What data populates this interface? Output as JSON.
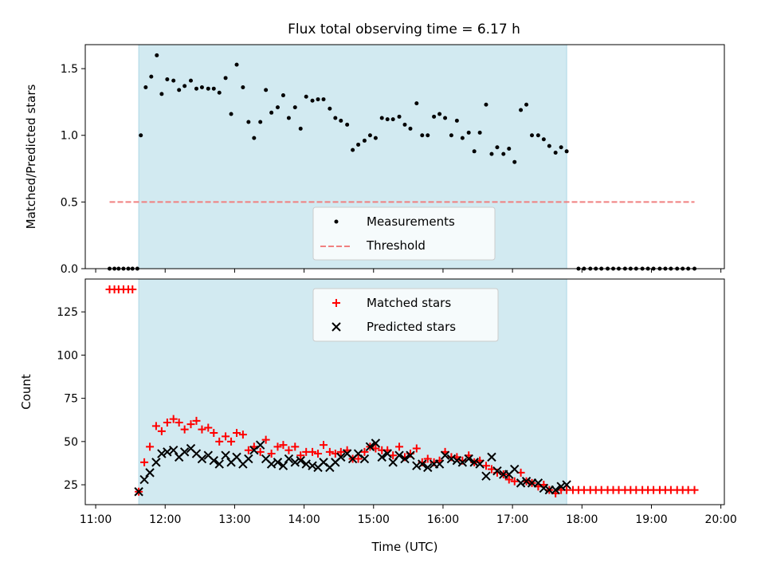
{
  "title": "Flux total observing time = 6.17 h",
  "x_tick_labels": [
    "11:00",
    "12:00",
    "13:00",
    "14:00",
    "15:00",
    "16:00",
    "17:00",
    "18:00",
    "19:00",
    "20:00"
  ],
  "colors": {
    "shade": "#add8e6",
    "threshold": "#f08080",
    "matched": "#ff0000",
    "predicted": "#000000",
    "measurements": "#000000"
  },
  "chart_data": [
    {
      "type": "scatter",
      "ylabel": "Matched/Predicted stars",
      "xlabel": "",
      "xlim": [
        10.85,
        20.05
      ],
      "ylim": [
        0,
        1.68
      ],
      "y_ticks": [
        0.0,
        0.5,
        1.0,
        1.5
      ],
      "y_tick_labels": [
        "0.0",
        "0.5",
        "1.0",
        "1.5"
      ],
      "shaded_interval": [
        11.62,
        17.78
      ],
      "threshold": {
        "name": "Threshold",
        "y": 0.5,
        "x_range": [
          11.2,
          19.62
        ]
      },
      "legend": {
        "position": "lower center",
        "entries": [
          "Measurements",
          "Threshold"
        ]
      },
      "series": [
        {
          "name": "Measurements",
          "x": [
            11.2,
            11.27,
            11.33,
            11.4,
            11.47,
            11.53,
            11.6,
            11.65,
            11.72,
            11.8,
            11.88,
            11.95,
            12.03,
            12.12,
            12.2,
            12.28,
            12.37,
            12.45,
            12.53,
            12.62,
            12.7,
            12.78,
            12.87,
            12.95,
            13.03,
            13.12,
            13.2,
            13.28,
            13.37,
            13.45,
            13.53,
            13.62,
            13.7,
            13.78,
            13.87,
            13.95,
            14.03,
            14.12,
            14.2,
            14.28,
            14.37,
            14.45,
            14.53,
            14.62,
            14.7,
            14.78,
            14.87,
            14.95,
            15.03,
            15.12,
            15.2,
            15.28,
            15.37,
            15.45,
            15.53,
            15.62,
            15.7,
            15.78,
            15.87,
            15.95,
            16.03,
            16.12,
            16.2,
            16.28,
            16.37,
            16.45,
            16.53,
            16.62,
            16.7,
            16.78,
            16.87,
            16.95,
            17.03,
            17.12,
            17.2,
            17.28,
            17.37,
            17.45,
            17.53,
            17.62,
            17.7,
            17.78,
            17.95,
            18.03,
            18.12,
            18.2,
            18.28,
            18.37,
            18.45,
            18.53,
            18.62,
            18.7,
            18.78,
            18.87,
            18.95,
            19.03,
            19.12,
            19.2,
            19.28,
            19.37,
            19.45,
            19.53,
            19.62
          ],
          "y": [
            0,
            0,
            0,
            0,
            0,
            0,
            0,
            1.0,
            1.36,
            1.44,
            1.6,
            1.31,
            1.42,
            1.41,
            1.34,
            1.37,
            1.41,
            1.35,
            1.36,
            1.35,
            1.35,
            1.32,
            1.43,
            1.16,
            1.53,
            1.36,
            1.1,
            0.98,
            1.1,
            1.34,
            1.17,
            1.21,
            1.3,
            1.13,
            1.21,
            1.05,
            1.29,
            1.26,
            1.27,
            1.27,
            1.2,
            1.13,
            1.11,
            1.08,
            0.89,
            0.93,
            0.96,
            1.0,
            0.98,
            1.13,
            1.12,
            1.12,
            1.14,
            1.08,
            1.05,
            1.24,
            1.0,
            1.0,
            1.14,
            1.16,
            1.13,
            1.0,
            1.11,
            0.98,
            1.02,
            0.88,
            1.02,
            1.23,
            0.86,
            0.91,
            0.86,
            0.9,
            0.8,
            1.19,
            1.23,
            1.0,
            1.0,
            0.97,
            0.92,
            0.87,
            0.91,
            0.88,
            0,
            0,
            0,
            0,
            0,
            0,
            0,
            0,
            0,
            0,
            0,
            0,
            0,
            0,
            0,
            0,
            0,
            0,
            0,
            0,
            0
          ]
        }
      ]
    },
    {
      "type": "scatter",
      "ylabel": "Count",
      "xlabel": "Time (UTC)",
      "xlim": [
        10.85,
        20.05
      ],
      "ylim": [
        13.5,
        144
      ],
      "y_ticks": [
        25,
        50,
        75,
        100,
        125
      ],
      "y_tick_labels": [
        "25",
        "50",
        "75",
        "100",
        "125"
      ],
      "shaded_interval": [
        11.62,
        17.78
      ],
      "legend": {
        "position": "upper center",
        "entries": [
          "Matched stars",
          "Predicted stars"
        ]
      },
      "series": [
        {
          "name": "Matched stars",
          "marker": "plus",
          "x": [
            11.2,
            11.27,
            11.33,
            11.4,
            11.47,
            11.53,
            11.62,
            11.7,
            11.78,
            11.87,
            11.95,
            12.03,
            12.12,
            12.2,
            12.28,
            12.37,
            12.45,
            12.53,
            12.62,
            12.7,
            12.78,
            12.87,
            12.95,
            13.03,
            13.12,
            13.2,
            13.28,
            13.37,
            13.45,
            13.53,
            13.62,
            13.7,
            13.78,
            13.87,
            13.95,
            14.03,
            14.12,
            14.2,
            14.28,
            14.37,
            14.45,
            14.53,
            14.62,
            14.7,
            14.78,
            14.87,
            14.95,
            15.03,
            15.12,
            15.2,
            15.28,
            15.37,
            15.45,
            15.53,
            15.62,
            15.7,
            15.78,
            15.87,
            15.95,
            16.03,
            16.12,
            16.2,
            16.28,
            16.37,
            16.45,
            16.53,
            16.62,
            16.7,
            16.78,
            16.87,
            16.95,
            17.03,
            17.12,
            17.2,
            17.28,
            17.37,
            17.45,
            17.53,
            17.62,
            17.7,
            17.78,
            17.87,
            17.95,
            18.03,
            18.12,
            18.2,
            18.28,
            18.37,
            18.45,
            18.53,
            18.62,
            18.7,
            18.78,
            18.87,
            18.95,
            19.03,
            19.12,
            19.2,
            19.28,
            19.37,
            19.45,
            19.53,
            19.62
          ],
          "y": [
            138,
            138,
            138,
            138,
            138,
            138,
            21,
            38,
            47,
            59,
            56,
            61,
            63,
            61,
            57,
            60,
            62,
            57,
            58,
            55,
            50,
            53,
            50,
            55,
            54,
            45,
            47,
            44,
            51,
            43,
            47,
            48,
            45,
            47,
            42,
            44,
            44,
            43,
            48,
            44,
            43,
            44,
            45,
            40,
            40,
            44,
            47,
            46,
            45,
            45,
            42,
            47,
            41,
            43,
            46,
            38,
            40,
            38,
            39,
            44,
            41,
            41,
            39,
            42,
            38,
            39,
            36,
            34,
            32,
            31,
            28,
            27,
            32,
            27,
            26,
            24,
            25,
            22,
            20,
            22,
            22,
            22,
            22,
            22,
            22,
            22,
            22,
            22,
            22,
            22,
            22,
            22,
            22,
            22,
            22,
            22,
            22,
            22,
            22,
            22,
            22,
            22,
            22
          ]
        },
        {
          "name": "Predicted stars",
          "marker": "x",
          "x": [
            11.62,
            11.7,
            11.78,
            11.87,
            11.95,
            12.03,
            12.12,
            12.2,
            12.28,
            12.37,
            12.45,
            12.53,
            12.62,
            12.7,
            12.78,
            12.87,
            12.95,
            13.03,
            13.12,
            13.2,
            13.28,
            13.37,
            13.45,
            13.53,
            13.62,
            13.7,
            13.78,
            13.87,
            13.95,
            14.03,
            14.12,
            14.2,
            14.28,
            14.37,
            14.45,
            14.53,
            14.62,
            14.7,
            14.78,
            14.87,
            14.95,
            15.03,
            15.12,
            15.2,
            15.28,
            15.37,
            15.45,
            15.53,
            15.62,
            15.7,
            15.78,
            15.87,
            15.95,
            16.03,
            16.12,
            16.2,
            16.28,
            16.37,
            16.45,
            16.53,
            16.62,
            16.7,
            16.78,
            16.87,
            16.95,
            17.03,
            17.12,
            17.2,
            17.28,
            17.37,
            17.45,
            17.53,
            17.62,
            17.7,
            17.78
          ],
          "y": [
            21,
            28,
            32,
            38,
            43,
            44,
            45,
            41,
            44,
            46,
            43,
            40,
            42,
            39,
            37,
            42,
            38,
            41,
            37,
            40,
            45,
            48,
            40,
            37,
            38,
            36,
            40,
            38,
            39,
            37,
            36,
            35,
            38,
            35,
            38,
            41,
            43,
            40,
            43,
            40,
            47,
            49,
            41,
            43,
            38,
            42,
            40,
            42,
            36,
            37,
            35,
            37,
            37,
            42,
            40,
            39,
            38,
            40,
            38,
            37,
            30,
            41,
            33,
            31,
            31,
            34,
            26,
            27,
            26,
            26,
            23,
            22,
            22,
            24,
            25
          ]
        }
      ]
    }
  ]
}
